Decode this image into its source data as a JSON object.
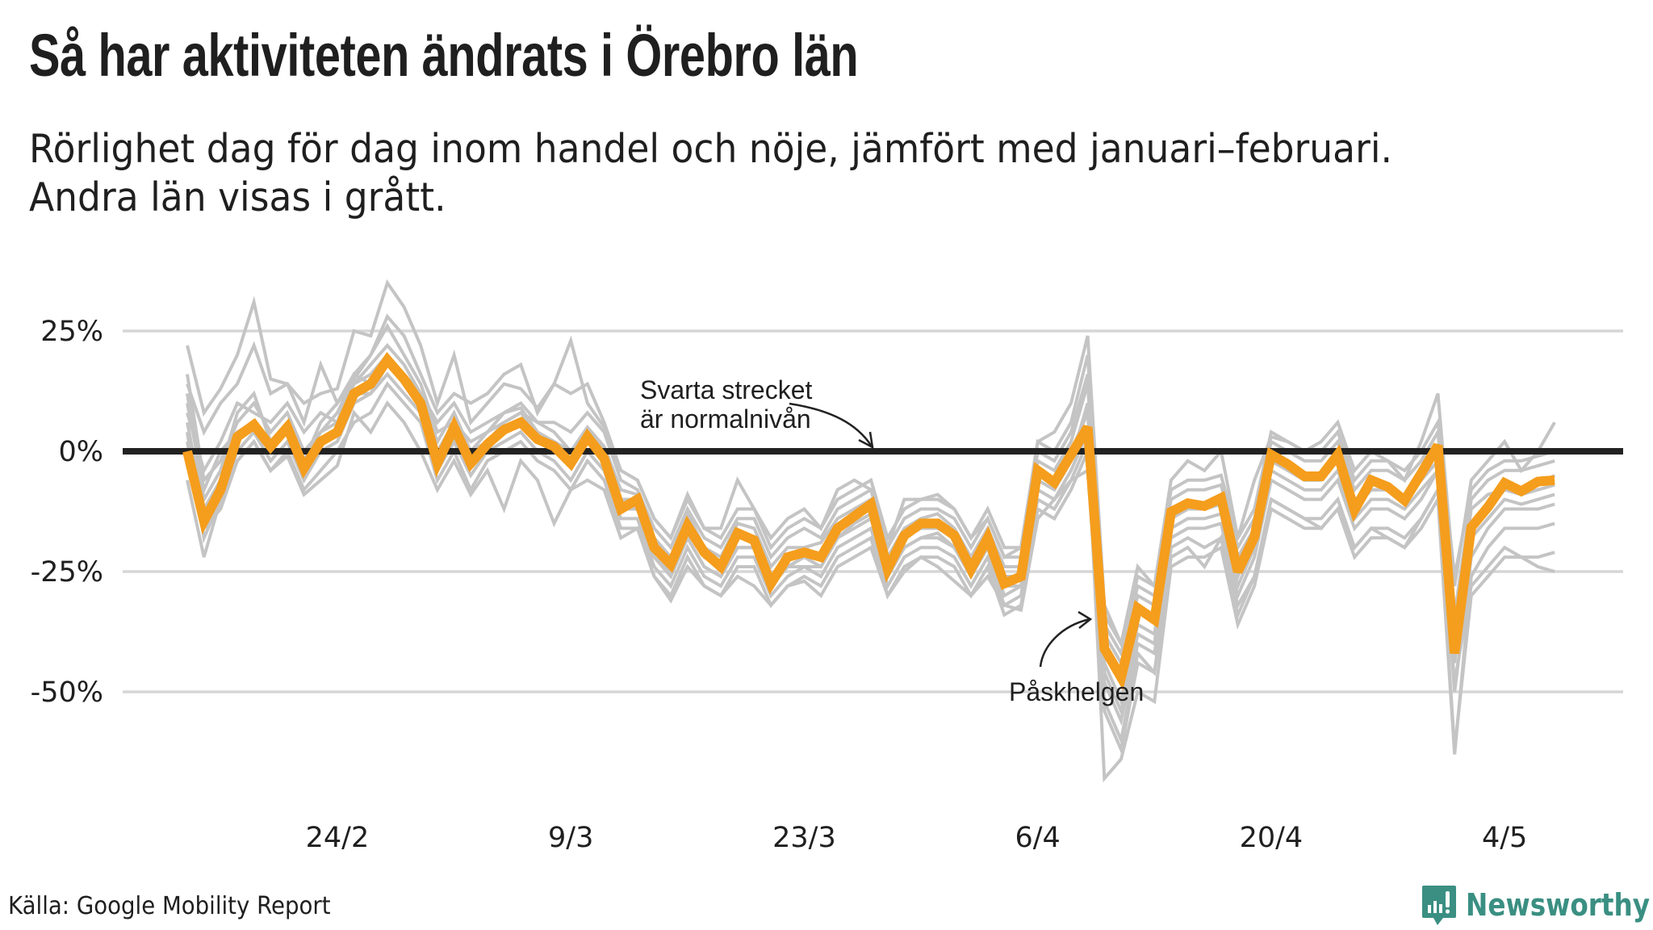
{
  "header": {
    "title": "Så har aktiviteten ändrats i Örebro län",
    "subtitle_line1": "Rörlighet dag för dag inom handel och nöje, jämfört med januari–februari.",
    "subtitle_line2": "Andra län visas i grått."
  },
  "footer": {
    "source": "Källa: Google Mobility Report",
    "brand": "Newsworthy",
    "brand_icon": "newsworthy-logo-icon",
    "brand_color": "#3a8f82"
  },
  "chart_data": {
    "type": "line",
    "title": "Så har aktiviteten ändrats i Örebro län",
    "subtitle": "Rörlighet dag för dag inom handel och nöje, jämfört med januari–februari. Andra län visas i grått.",
    "xlabel": "",
    "ylabel": "",
    "x_start": "15/2",
    "x_end": "7/5",
    "x_unit": "day",
    "x_ticks": [
      {
        "index": 9,
        "label": "24/2"
      },
      {
        "index": 23,
        "label": "9/3"
      },
      {
        "index": 37,
        "label": "23/3"
      },
      {
        "index": 51,
        "label": "6/4"
      },
      {
        "index": 65,
        "label": "20/4"
      },
      {
        "index": 79,
        "label": "4/5"
      }
    ],
    "y_ticks": [
      {
        "value": 25,
        "label": "25%"
      },
      {
        "value": 0,
        "label": "0%"
      },
      {
        "value": -25,
        "label": "-25%"
      },
      {
        "value": -50,
        "label": "-50%"
      }
    ],
    "ylim": [
      -70,
      38
    ],
    "grid": true,
    "baseline": {
      "value": 0,
      "color": "#222222"
    },
    "highlight": {
      "name": "Örebro län",
      "color": "#f59d1c",
      "values": [
        0,
        -14.5,
        -8,
        3,
        5.5,
        1,
        5,
        -3.5,
        2,
        4,
        12,
        14,
        19,
        15,
        10,
        -2.5,
        5,
        -2.5,
        1.5,
        4.5,
        6,
        2.5,
        1,
        -2.5,
        3,
        -1.5,
        -12,
        -10,
        -20,
        -23.5,
        -15.5,
        -21,
        -24,
        -17,
        -18.5,
        -27.5,
        -22,
        -21,
        -22,
        -16,
        -13.5,
        -11,
        -24.5,
        -17.5,
        -15,
        -15,
        -17.5,
        -24.5,
        -18,
        -27.5,
        -26,
        -4,
        -6.5,
        -0.7,
        5,
        -41,
        -47,
        -32.6,
        -35,
        -12.6,
        -10.8,
        -11.4,
        -9.7,
        -25,
        -17.8,
        -0.7,
        -2.7,
        -5.2,
        -5.2,
        -0.7,
        -12.2,
        -6,
        -7.4,
        -10.2,
        -4.6,
        1.2,
        -42,
        -15.8,
        -11.6,
        -6.6,
        -8.3,
        -6.3,
        -6
      ]
    },
    "others_color": "#c4c4c4",
    "others": [
      {
        "name": "Andra län 1",
        "values": [
          22,
          8,
          13,
          20,
          31,
          15,
          14,
          10,
          12,
          13,
          25,
          24,
          35,
          30,
          22,
          10,
          20,
          6,
          10,
          14,
          13,
          9,
          14,
          23,
          10,
          5,
          -4,
          -6,
          -14,
          -18,
          -9,
          -16,
          -16,
          -6,
          -12,
          -18,
          -14,
          -12,
          -16,
          -8,
          -6,
          -8,
          -20,
          -10,
          -10,
          -9,
          -12,
          -18,
          -14,
          -22,
          -20,
          2,
          4,
          10,
          24,
          -32,
          -40,
          -24,
          -28,
          -6,
          -2,
          -4,
          0,
          -18,
          -6,
          3,
          2,
          0,
          2,
          6,
          -4,
          0,
          -2,
          -6,
          2,
          12,
          -28,
          -6,
          -2,
          2,
          -4,
          0,
          6
        ]
      },
      {
        "name": "Andra län 2",
        "values": [
          -6,
          -22,
          -10,
          -2,
          2,
          -4,
          -1,
          -9,
          -6,
          -3,
          8,
          4,
          10,
          6,
          0,
          -8,
          -2,
          -9,
          -4,
          -12,
          -2,
          -6,
          -15,
          -8,
          -6,
          -8,
          -18,
          -16,
          -26,
          -31,
          -24,
          -28,
          -30,
          -26,
          -28,
          -32,
          -28,
          -27,
          -30,
          -24,
          -22,
          -20,
          -30,
          -25,
          -22,
          -24,
          -27,
          -30,
          -26,
          -32,
          -33,
          -14,
          -10,
          -6,
          -4,
          -52,
          -60,
          -42,
          -46,
          -22,
          -20,
          -24,
          -18,
          -32,
          -26,
          -10,
          -12,
          -14,
          -16,
          -12,
          -20,
          -16,
          -18,
          -20,
          -14,
          -8,
          -48,
          -28,
          -24,
          -20,
          -22,
          -24,
          -25
        ]
      },
      {
        "name": "Andra län 3",
        "values": [
          16,
          -6,
          -2,
          6,
          10,
          4,
          8,
          0,
          4,
          8,
          15,
          20,
          26,
          20,
          14,
          4,
          6,
          2,
          4,
          8,
          9,
          4,
          2,
          0,
          5,
          1,
          -8,
          -9,
          -18,
          -22,
          -13,
          -20,
          -22,
          -15,
          -16,
          -24,
          -20,
          -20,
          -19,
          -14,
          -12,
          -10,
          -22,
          -16,
          -14,
          -13,
          -16,
          -22,
          -16,
          -24,
          -24,
          -2,
          -4,
          2,
          14,
          -38,
          -44,
          -30,
          -32,
          -14,
          -12,
          -12,
          -11,
          -22,
          -16,
          -2,
          -4,
          -6,
          -5,
          -2,
          -10,
          -8,
          -8,
          -10,
          -6,
          0,
          -36,
          -12,
          -9,
          -8,
          -8,
          -7,
          -5
        ]
      },
      {
        "name": "Andra län 4",
        "values": [
          12,
          -10,
          -4,
          8,
          12,
          2,
          6,
          -2,
          6,
          10,
          14,
          18,
          22,
          18,
          12,
          2,
          8,
          0,
          2,
          6,
          8,
          6,
          4,
          0,
          4,
          0,
          -10,
          -12,
          -22,
          -26,
          -18,
          -24,
          -26,
          -20,
          -20,
          -28,
          -24,
          -24,
          -24,
          -18,
          -15,
          -13,
          -26,
          -20,
          -18,
          -17,
          -20,
          -26,
          -20,
          -30,
          -28,
          -6,
          -8,
          -2,
          10,
          -44,
          -52,
          -36,
          -38,
          -16,
          -14,
          -14,
          -13,
          -28,
          -20,
          -4,
          -6,
          -8,
          -8,
          -4,
          -14,
          -10,
          -10,
          -12,
          -8,
          -4,
          -40,
          -18,
          -14,
          -10,
          -11,
          -10,
          -9
        ]
      },
      {
        "name": "Andra län 5",
        "values": [
          4,
          -18,
          -10,
          0,
          4,
          -2,
          2,
          -6,
          0,
          2,
          10,
          12,
          16,
          12,
          8,
          -4,
          2,
          -5,
          0,
          2,
          4,
          0,
          -2,
          -6,
          0,
          -4,
          -14,
          -14,
          -24,
          -28,
          -20,
          -26,
          -28,
          -22,
          -22,
          -30,
          -26,
          -24,
          -26,
          -20,
          -18,
          -16,
          -28,
          -22,
          -20,
          -20,
          -22,
          -28,
          -22,
          -32,
          -30,
          -8,
          -10,
          -4,
          4,
          -48,
          -56,
          -40,
          -42,
          -18,
          -16,
          -16,
          -15,
          -30,
          -22,
          -6,
          -8,
          -10,
          -10,
          -6,
          -16,
          -12,
          -12,
          -14,
          -10,
          -4,
          -50,
          -22,
          -16,
          -12,
          -12,
          -12,
          -11
        ]
      },
      {
        "name": "Andra län 6",
        "values": [
          8,
          -4,
          2,
          10,
          8,
          6,
          10,
          4,
          8,
          6,
          16,
          14,
          18,
          16,
          12,
          6,
          10,
          4,
          6,
          8,
          10,
          6,
          6,
          4,
          8,
          4,
          -6,
          -8,
          -16,
          -20,
          -12,
          -18,
          -20,
          -14,
          -14,
          -22,
          -18,
          -16,
          -18,
          -12,
          -10,
          -8,
          -20,
          -14,
          -12,
          -12,
          -14,
          -20,
          -14,
          -22,
          -22,
          0,
          -2,
          4,
          16,
          -36,
          -42,
          -28,
          -30,
          -10,
          -8,
          -8,
          -7,
          -20,
          -14,
          2,
          0,
          -2,
          -2,
          2,
          -8,
          -4,
          -4,
          -6,
          -2,
          4,
          -34,
          -10,
          -6,
          -4,
          -4,
          -3,
          -2
        ]
      },
      {
        "name": "Andra län 7",
        "values": [
          2,
          -16,
          -12,
          -2,
          2,
          -4,
          0,
          -8,
          -4,
          0,
          6,
          8,
          14,
          10,
          6,
          -6,
          0,
          -8,
          -2,
          0,
          2,
          -2,
          -4,
          -8,
          -2,
          -6,
          -16,
          -16,
          -26,
          -30,
          -22,
          -28,
          -30,
          -24,
          -24,
          -32,
          -28,
          -26,
          -28,
          -22,
          -20,
          -18,
          -30,
          -24,
          -22,
          -22,
          -24,
          -30,
          -24,
          -34,
          -32,
          -12,
          -14,
          -8,
          0,
          -54,
          -62,
          -44,
          -46,
          -20,
          -18,
          -20,
          -18,
          -34,
          -26,
          -10,
          -12,
          -14,
          -14,
          -10,
          -20,
          -16,
          -16,
          -18,
          -14,
          -8,
          -62,
          -30,
          -26,
          -22,
          -22,
          -22,
          -21
        ]
      },
      {
        "name": "Andra län 8",
        "values": [
          14,
          4,
          10,
          14,
          22,
          12,
          14,
          6,
          18,
          10,
          16,
          20,
          28,
          24,
          16,
          8,
          12,
          10,
          12,
          16,
          18,
          8,
          14,
          12,
          14,
          6,
          -4,
          -6,
          -14,
          -18,
          -10,
          -16,
          -18,
          -12,
          -12,
          -20,
          -16,
          -14,
          -16,
          -10,
          -8,
          -6,
          -18,
          -12,
          -10,
          -10,
          -12,
          -18,
          -12,
          -20,
          -20,
          2,
          0,
          6,
          20,
          -34,
          -40,
          -26,
          -28,
          -8,
          -6,
          -6,
          -5,
          -18,
          -12,
          4,
          2,
          0,
          0,
          4,
          -6,
          -2,
          -2,
          -4,
          0,
          6,
          -26,
          -8,
          -4,
          -2,
          -2,
          -1,
          0
        ]
      },
      {
        "name": "Andra län 9",
        "values": [
          10,
          -8,
          0,
          4,
          6,
          0,
          4,
          -4,
          2,
          4,
          12,
          12,
          18,
          14,
          10,
          -2,
          4,
          -3,
          1,
          4,
          6,
          2,
          0,
          -2,
          2,
          -2,
          -12,
          -12,
          -22,
          -25,
          -18,
          -24,
          -26,
          -20,
          -20,
          -28,
          -24,
          -22,
          -24,
          -18,
          -16,
          -14,
          -26,
          -20,
          -18,
          -18,
          -20,
          -26,
          -20,
          -28,
          -28,
          -10,
          -12,
          -6,
          2,
          -68,
          -64,
          -50,
          -52,
          -24,
          -22,
          -22,
          -20,
          -36,
          -28,
          -12,
          -14,
          -16,
          -16,
          -12,
          -22,
          -18,
          -18,
          -20,
          -16,
          -10,
          -63,
          -26,
          -20,
          -16,
          -16,
          -16,
          -15
        ]
      },
      {
        "name": "Andra län 10",
        "values": [
          6,
          -12,
          -6,
          4,
          6,
          2,
          6,
          -2,
          4,
          6,
          14,
          16,
          20,
          16,
          12,
          0,
          6,
          0,
          4,
          6,
          8,
          4,
          2,
          0,
          4,
          0,
          -10,
          -10,
          -20,
          -24,
          -16,
          -22,
          -24,
          -18,
          -18,
          -26,
          -22,
          -20,
          -22,
          -16,
          -14,
          -12,
          -24,
          -18,
          -16,
          -16,
          -18,
          -24,
          -18,
          -26,
          -26,
          -4,
          -6,
          0,
          8,
          -46,
          -54,
          -38,
          -40,
          -14,
          -12,
          -12,
          -11,
          -26,
          -18,
          -2,
          -4,
          -6,
          -6,
          -2,
          -12,
          -8,
          -8,
          -10,
          -6,
          -2,
          -44,
          -16,
          -12,
          -8,
          -9,
          -8,
          -7
        ]
      }
    ],
    "annotations": [
      {
        "text_lines": [
          "Svarta strecket",
          "är normalnivån"
        ],
        "points_to": "baseline 0%"
      },
      {
        "text_lines": [
          "Påskhelgen"
        ],
        "points_to": "Easter weekend dip (10/4–12/4)"
      }
    ]
  }
}
